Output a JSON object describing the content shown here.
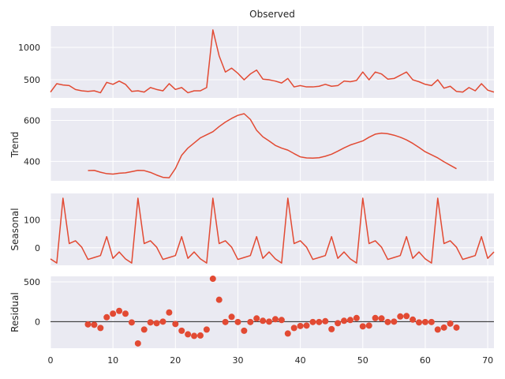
{
  "chart_data": [
    {
      "type": "line",
      "title": "Observed",
      "ylabel": "",
      "xlim": [
        0,
        71
      ],
      "ylim": [
        220,
        1330
      ],
      "yticks": [
        500,
        1000
      ],
      "grid": true,
      "line_color": "#e24a33",
      "series": [
        {
          "x": [
            0,
            1,
            2,
            3,
            4,
            5,
            6,
            7,
            8,
            9,
            10,
            11,
            12,
            13,
            14,
            15,
            16,
            17,
            18,
            19,
            20,
            21,
            22,
            23,
            24,
            25,
            26,
            27,
            28,
            29,
            30,
            31,
            32,
            33,
            34,
            35,
            36,
            37,
            38,
            39,
            40,
            41,
            42,
            43,
            44,
            45,
            46,
            47,
            48,
            49,
            50,
            51,
            52,
            53,
            54,
            55,
            56,
            57,
            58,
            59,
            60,
            61,
            62,
            63,
            64,
            65,
            66,
            67,
            68,
            69,
            70,
            71
          ],
          "y": [
            310,
            440,
            420,
            410,
            350,
            330,
            320,
            330,
            300,
            460,
            430,
            480,
            430,
            320,
            330,
            310,
            380,
            350,
            330,
            440,
            350,
            380,
            300,
            330,
            330,
            380,
            1270,
            870,
            620,
            680,
            600,
            500,
            590,
            650,
            510,
            500,
            480,
            450,
            520,
            390,
            410,
            390,
            390,
            400,
            430,
            400,
            410,
            480,
            470,
            490,
            620,
            500,
            620,
            590,
            510,
            520,
            570,
            620,
            500,
            470,
            430,
            410,
            500,
            370,
            400,
            320,
            310,
            380,
            330,
            440,
            340,
            310
          ]
        }
      ]
    },
    {
      "type": "line",
      "title": "",
      "ylabel": "Trend",
      "xlim": [
        0,
        71
      ],
      "ylim": [
        305,
        660
      ],
      "yticks": [
        400,
        600
      ],
      "grid": true,
      "line_color": "#e24a33",
      "series": [
        {
          "x": [
            6,
            7,
            8,
            9,
            10,
            11,
            12,
            13,
            14,
            15,
            16,
            17,
            18,
            19,
            20,
            21,
            22,
            23,
            24,
            25,
            26,
            27,
            28,
            29,
            30,
            31,
            32,
            33,
            34,
            35,
            36,
            37,
            38,
            39,
            40,
            41,
            42,
            43,
            44,
            45,
            46,
            47,
            48,
            49,
            50,
            51,
            52,
            53,
            54,
            55,
            56,
            57,
            58,
            59,
            60,
            61,
            62,
            63,
            64,
            65
          ],
          "y": [
            355,
            356,
            347,
            340,
            338,
            342,
            344,
            350,
            356,
            355,
            346,
            333,
            322,
            320,
            365,
            430,
            465,
            490,
            515,
            530,
            545,
            570,
            592,
            610,
            625,
            633,
            605,
            552,
            520,
            500,
            478,
            465,
            455,
            438,
            422,
            417,
            416,
            418,
            425,
            435,
            450,
            466,
            480,
            490,
            500,
            518,
            533,
            538,
            535,
            528,
            518,
            505,
            488,
            468,
            447,
            432,
            417,
            398,
            381,
            364
          ]
        }
      ]
    },
    {
      "type": "line",
      "title": "",
      "ylabel": "Seasonal",
      "xlim": [
        0,
        71
      ],
      "ylim": [
        -63,
        195
      ],
      "yticks": [
        0,
        100
      ],
      "grid": true,
      "line_color": "#e24a33",
      "series": [
        {
          "x": [
            0,
            1,
            2,
            3,
            4,
            5,
            6,
            7,
            8,
            9,
            10,
            11,
            12,
            13,
            14,
            15,
            16,
            17,
            18,
            19,
            20,
            21,
            22,
            23,
            24,
            25,
            26,
            27,
            28,
            29,
            30,
            31,
            32,
            33,
            34,
            35,
            36,
            37,
            38,
            39,
            40,
            41,
            42,
            43,
            44,
            45,
            46,
            47,
            48,
            49,
            50,
            51,
            52,
            53,
            54,
            55,
            56,
            57,
            58,
            59,
            60,
            61,
            62,
            63,
            64,
            65,
            66,
            67,
            68,
            69,
            70,
            71
          ],
          "y": [
            -40,
            -55,
            178,
            15,
            25,
            2,
            -42,
            -35,
            -28,
            40,
            -38,
            -15,
            -40,
            -55,
            178,
            15,
            25,
            2,
            -42,
            -35,
            -28,
            40,
            -38,
            -15,
            -40,
            -55,
            178,
            15,
            25,
            2,
            -42,
            -35,
            -28,
            40,
            -38,
            -15,
            -40,
            -55,
            178,
            15,
            25,
            2,
            -42,
            -35,
            -28,
            40,
            -38,
            -15,
            -40,
            -55,
            178,
            15,
            25,
            2,
            -42,
            -35,
            -28,
            40,
            -38,
            -15,
            -40,
            -55,
            178,
            15,
            25,
            2,
            -42,
            -35,
            -28,
            40,
            -38,
            -15
          ]
        }
      ]
    },
    {
      "type": "scatter",
      "title": "",
      "ylabel": "Residual",
      "xlim": [
        0,
        71
      ],
      "ylim": [
        -335,
        570
      ],
      "yticks": [
        0,
        500
      ],
      "grid": true,
      "zero_line": true,
      "marker_color": "#e24a33",
      "series": [
        {
          "x": [
            6,
            7,
            8,
            9,
            10,
            11,
            12,
            13,
            14,
            15,
            16,
            17,
            18,
            19,
            20,
            21,
            22,
            23,
            24,
            25,
            26,
            27,
            28,
            29,
            30,
            31,
            32,
            33,
            34,
            35,
            36,
            37,
            38,
            39,
            40,
            41,
            42,
            43,
            44,
            45,
            46,
            47,
            48,
            49,
            50,
            51,
            52,
            53,
            54,
            55,
            56,
            57,
            58,
            59,
            60,
            61,
            62,
            63,
            64,
            65
          ],
          "y": [
            -35,
            -40,
            -80,
            55,
            100,
            135,
            100,
            -10,
            -275,
            -100,
            -10,
            -20,
            0,
            115,
            -30,
            -115,
            -160,
            -180,
            -175,
            -100,
            540,
            275,
            -5,
            60,
            -5,
            -115,
            -5,
            40,
            10,
            0,
            30,
            20,
            -150,
            -80,
            -55,
            -50,
            -5,
            -5,
            5,
            -95,
            -20,
            10,
            20,
            45,
            -60,
            -50,
            45,
            40,
            -5,
            0,
            65,
            70,
            25,
            -10,
            -5,
            -5,
            -100,
            -75,
            -25,
            -75
          ]
        }
      ]
    }
  ],
  "x_axis": {
    "ticks": [
      0,
      10,
      20,
      30,
      40,
      50,
      60,
      70
    ]
  },
  "style": {
    "panel_bg": "#eaeaf2",
    "grid_color": "#ffffff",
    "text_color": "#262626"
  }
}
